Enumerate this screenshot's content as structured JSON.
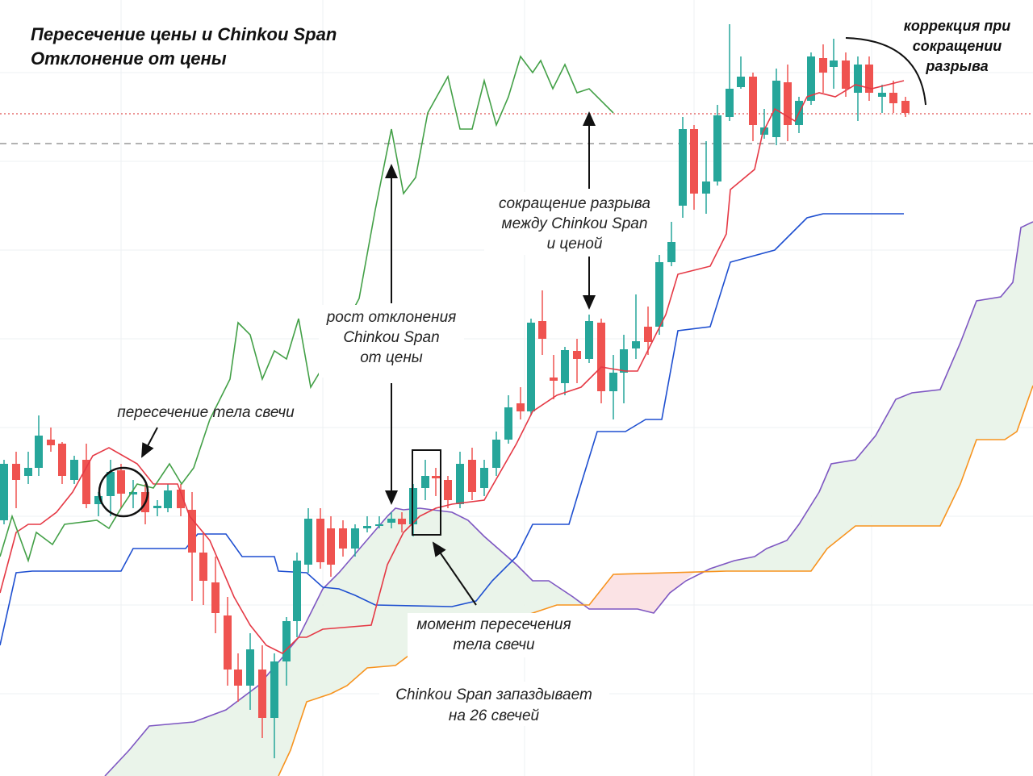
{
  "title": [
    "Пересечение цены и Chinkou Span",
    "Отклонение от цены"
  ],
  "annotations": {
    "candle_cross": "пересечение тела свечи",
    "deviation_growth": [
      "рост отклонения",
      "Chinkou Span",
      "от цены"
    ],
    "gap_reduction": [
      "сокращение разрыва",
      "между Chinkou Span",
      "и  ценой"
    ],
    "cross_moment": [
      "момент пересечения",
      "тела свечи"
    ],
    "lag": [
      "Chinkou Span запаздывает",
      "на 26 свечей"
    ],
    "correction": [
      "коррекция при",
      "сокращении",
      "разрыва"
    ]
  }
}
